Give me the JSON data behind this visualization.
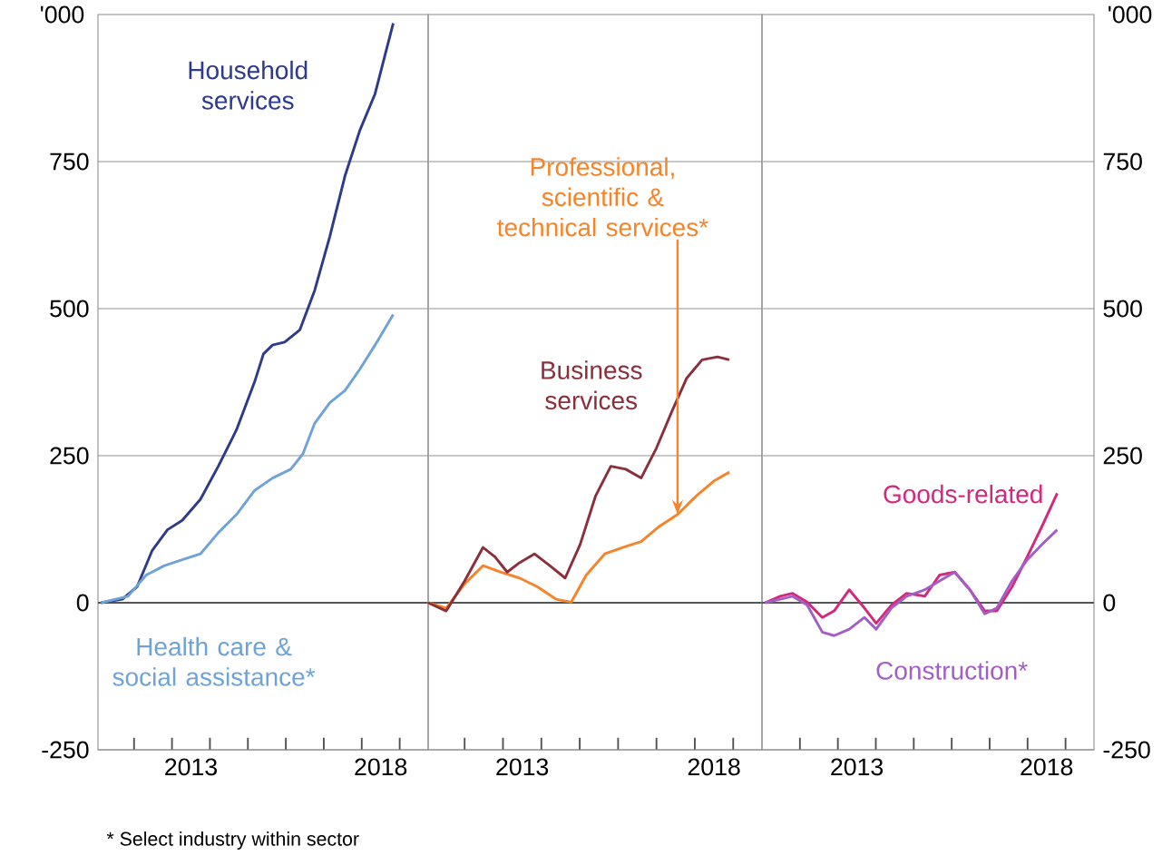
{
  "chart_data": [
    {
      "type": "line",
      "xlim": [
        2011.05,
        2019.75
      ],
      "xticks": [
        {
          "value": 2012,
          "label": null
        },
        {
          "value": 2013,
          "label": null
        },
        {
          "value": 2013.5,
          "label": "2013"
        },
        {
          "value": 2014,
          "label": null
        },
        {
          "value": 2015,
          "label": null
        },
        {
          "value": 2016,
          "label": null
        },
        {
          "value": 2017,
          "label": null
        },
        {
          "value": 2018,
          "label": null
        },
        {
          "value": 2018.5,
          "label": "2018"
        },
        {
          "value": 2019,
          "label": null
        }
      ],
      "ylim": [
        -250,
        1000
      ],
      "yticks": [
        -250,
        0,
        250,
        500,
        750
      ],
      "ylabel": "'000",
      "grid": "y",
      "ref_lines": [
        {
          "axis": "y",
          "value": 0,
          "color": "#555555"
        }
      ],
      "annotations": [
        "* Select industry within sector"
      ],
      "series": [
        {
          "name": "Household services",
          "color": "#2e3a8c",
          "x": [
            2011.13,
            2011.69,
            2012.08,
            2012.48,
            2012.88,
            2013.27,
            2013.75,
            2014.22,
            2014.7,
            2015.18,
            2015.41,
            2015.65,
            2015.97,
            2016.37,
            2016.76,
            2017.16,
            2017.56,
            2017.95,
            2018.35,
            2018.83
          ],
          "values": [
            0,
            6,
            27,
            89,
            124,
            140,
            176,
            232,
            294,
            376,
            423,
            438,
            443,
            464,
            531,
            623,
            726,
            803,
            865,
            985
          ]
        },
        {
          "name": "Health care & social assistance*",
          "color": "#6fa3d8",
          "x": [
            2011.13,
            2011.84,
            2012.32,
            2012.8,
            2013.27,
            2013.75,
            2014.22,
            2014.7,
            2015.18,
            2015.65,
            2016.13,
            2016.45,
            2016.76,
            2017.16,
            2017.56,
            2017.95,
            2018.35,
            2018.83
          ],
          "values": [
            0,
            11,
            47,
            63,
            73,
            83,
            119,
            150,
            191,
            212,
            227,
            253,
            305,
            340,
            361,
            397,
            438,
            490
          ]
        }
      ]
    },
    {
      "type": "line",
      "xlim": [
        2011.05,
        2019.75
      ],
      "xticks": [
        {
          "value": 2012,
          "label": null
        },
        {
          "value": 2013,
          "label": null
        },
        {
          "value": 2013.5,
          "label": "2013"
        },
        {
          "value": 2014,
          "label": null
        },
        {
          "value": 2015,
          "label": null
        },
        {
          "value": 2016,
          "label": null
        },
        {
          "value": 2017,
          "label": null
        },
        {
          "value": 2018,
          "label": null
        },
        {
          "value": 2018.5,
          "label": "2018"
        },
        {
          "value": 2019,
          "label": null
        }
      ],
      "ylim": [
        -250,
        1000
      ],
      "yticks": [
        -250,
        0,
        250,
        500,
        750
      ],
      "grid": "y",
      "tick_labels": "x",
      "ref_lines": [
        {
          "axis": "y",
          "value": 0,
          "color": "#555555"
        }
      ],
      "series": [
        {
          "name": "Professional, scientific & technical services*",
          "color": "#f5842a",
          "x": [
            2011.05,
            2011.52,
            2012.0,
            2012.48,
            2012.95,
            2013.43,
            2013.9,
            2014.38,
            2014.78,
            2015.17,
            2015.65,
            2016.12,
            2016.6,
            2017.08,
            2017.55,
            2018.03,
            2018.5,
            2018.9
          ],
          "values": [
            0,
            -9,
            32,
            63,
            52,
            42,
            27,
            6,
            1,
            47,
            83,
            94,
            104,
            130,
            150,
            181,
            207,
            222
          ]
        },
        {
          "name": "Business services",
          "color": "#8c2f3c",
          "x": [
            2011.05,
            2011.52,
            2012.0,
            2012.48,
            2012.79,
            2013.11,
            2013.43,
            2013.82,
            2014.22,
            2014.62,
            2015.01,
            2015.41,
            2015.81,
            2016.2,
            2016.6,
            2017.0,
            2017.4,
            2017.79,
            2018.19,
            2018.59,
            2018.9
          ],
          "values": [
            0,
            -14,
            37,
            94,
            78,
            52,
            68,
            83,
            63,
            42,
            99,
            181,
            232,
            227,
            212,
            263,
            325,
            382,
            413,
            418,
            413
          ]
        }
      ]
    },
    {
      "type": "line",
      "xlim": [
        2011.0,
        2019.75
      ],
      "xticks": [
        {
          "value": 2012,
          "label": null
        },
        {
          "value": 2013,
          "label": null
        },
        {
          "value": 2013.5,
          "label": "2013"
        },
        {
          "value": 2014,
          "label": null
        },
        {
          "value": 2015,
          "label": null
        },
        {
          "value": 2016,
          "label": null
        },
        {
          "value": 2017,
          "label": null
        },
        {
          "value": 2018,
          "label": null
        },
        {
          "value": 2018.5,
          "label": "2018"
        },
        {
          "value": 2019,
          "label": null
        }
      ],
      "y2lim": [
        -250,
        1000
      ],
      "y2ticks": [
        -250,
        0,
        250,
        500,
        750
      ],
      "y2label": "'000",
      "grid": "y",
      "ref_lines": [
        {
          "axis": "y2",
          "value": 0,
          "color": "#555555"
        }
      ],
      "series": [
        {
          "name": "Goods-related",
          "color": "#d4287c",
          "axis": "y2",
          "x": [
            2011.08,
            2011.48,
            2011.8,
            2012.19,
            2012.59,
            2012.9,
            2013.3,
            2013.7,
            2014.01,
            2014.41,
            2014.81,
            2015.29,
            2015.68,
            2016.08,
            2016.48,
            2016.87,
            2017.19,
            2017.59,
            2017.99,
            2018.38,
            2018.78
          ],
          "values": [
            0,
            11,
            16,
            1,
            -25,
            -14,
            22,
            -9,
            -35,
            -4,
            16,
            11,
            47,
            52,
            22,
            -14,
            -14,
            27,
            78,
            130,
            186
          ]
        },
        {
          "name": "Construction*",
          "color": "#a35ec6",
          "axis": "y2",
          "x": [
            2011.08,
            2011.48,
            2011.8,
            2012.19,
            2012.59,
            2012.9,
            2013.3,
            2013.7,
            2014.01,
            2014.41,
            2014.81,
            2015.29,
            2015.68,
            2016.08,
            2016.48,
            2016.87,
            2017.19,
            2017.59,
            2017.99,
            2018.38,
            2018.78
          ],
          "values": [
            0,
            6,
            11,
            -4,
            -50,
            -56,
            -45,
            -25,
            -45,
            -9,
            11,
            22,
            37,
            52,
            22,
            -19,
            -9,
            37,
            73,
            99,
            124
          ]
        }
      ]
    }
  ]
}
